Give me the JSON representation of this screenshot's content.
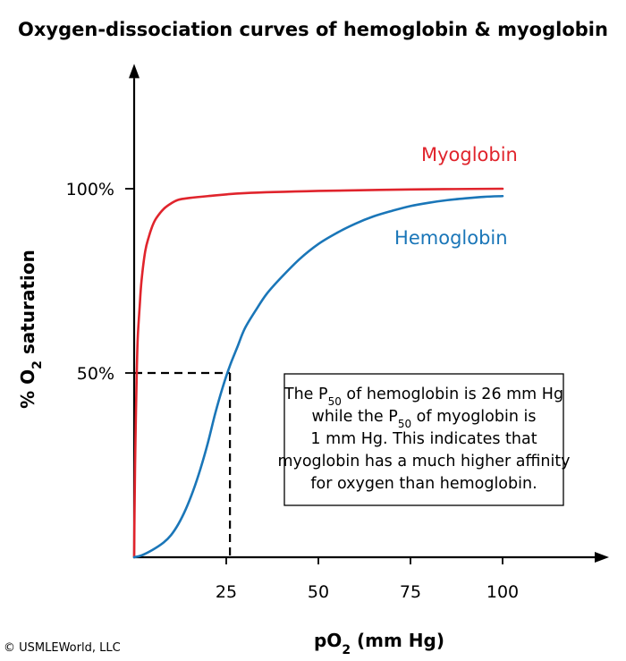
{
  "chart_data": {
    "type": "line",
    "title": "Oxygen-dissociation curves of hemoglobin & myoglobin",
    "xlabel": {
      "prefix": "pO",
      "sub": "2",
      "suffix": " (mm Hg)"
    },
    "ylabel": {
      "prefix": "% O",
      "sub": "2",
      "suffix": " saturation"
    },
    "xlim": [
      0,
      125
    ],
    "ylim": [
      0,
      130
    ],
    "x_ticks": [
      {
        "value": 25,
        "label": "25"
      },
      {
        "value": 50,
        "label": "50"
      },
      {
        "value": 75,
        "label": "75"
      },
      {
        "value": 100,
        "label": "100"
      }
    ],
    "y_ticks": [
      {
        "value": 50,
        "label": "50%"
      },
      {
        "value": 100,
        "label": "100%"
      }
    ],
    "grid": false,
    "series": [
      {
        "name": "Myoglobin",
        "color": "#e0242c",
        "label_at": {
          "x": 91,
          "y": 107.5
        },
        "points": [
          [
            0,
            0
          ],
          [
            0.1,
            12
          ],
          [
            0.25,
            25
          ],
          [
            0.5,
            40
          ],
          [
            0.75,
            52
          ],
          [
            1,
            60
          ],
          [
            1.5,
            68
          ],
          [
            2,
            75
          ],
          [
            3,
            83
          ],
          [
            4,
            87
          ],
          [
            5,
            90
          ],
          [
            6,
            92
          ],
          [
            8,
            94.5
          ],
          [
            10,
            96
          ],
          [
            12,
            97
          ],
          [
            15,
            97.5
          ],
          [
            20,
            98
          ],
          [
            30,
            98.8
          ],
          [
            50,
            99.4
          ],
          [
            75,
            99.8
          ],
          [
            100,
            100
          ]
        ]
      },
      {
        "name": "Hemoglobin",
        "color": "#1a76b8",
        "label_at": {
          "x": 86,
          "y": 85
        },
        "points": [
          [
            0,
            0
          ],
          [
            2,
            0.5
          ],
          [
            5,
            2
          ],
          [
            8,
            4
          ],
          [
            10,
            6
          ],
          [
            12,
            9
          ],
          [
            14,
            13
          ],
          [
            16,
            18
          ],
          [
            18,
            24
          ],
          [
            20,
            31
          ],
          [
            22,
            39
          ],
          [
            24,
            46
          ],
          [
            26,
            52
          ],
          [
            28,
            57
          ],
          [
            30,
            62
          ],
          [
            33,
            67
          ],
          [
            36,
            71.5
          ],
          [
            40,
            76
          ],
          [
            45,
            81
          ],
          [
            50,
            85
          ],
          [
            55,
            88
          ],
          [
            60,
            90.5
          ],
          [
            65,
            92.5
          ],
          [
            70,
            94
          ],
          [
            75,
            95.3
          ],
          [
            80,
            96.2
          ],
          [
            85,
            96.9
          ],
          [
            90,
            97.4
          ],
          [
            95,
            97.8
          ],
          [
            100,
            98
          ]
        ]
      }
    ],
    "reference_lines": [
      {
        "from": [
          0,
          50
        ],
        "to": [
          26,
          50
        ]
      },
      {
        "from": [
          26,
          50
        ],
        "to": [
          26,
          0
        ]
      }
    ],
    "annotation": {
      "lines": [
        [
          {
            "t": "The P"
          },
          {
            "t": "50",
            "sub": true
          },
          {
            "t": " of hemoglobin is 26 mm Hg"
          }
        ],
        [
          {
            "t": "while the P"
          },
          {
            "t": "50",
            "sub": true
          },
          {
            "t": " of myoglobin is"
          }
        ],
        [
          {
            "t": "1 mm Hg.  This indicates that"
          }
        ],
        [
          {
            "t": "myoglobin has a much higher affinity"
          }
        ],
        [
          {
            "t": "for oxygen than hemoglobin."
          }
        ]
      ]
    },
    "copyright": "© USMLEWorld, LLC"
  }
}
